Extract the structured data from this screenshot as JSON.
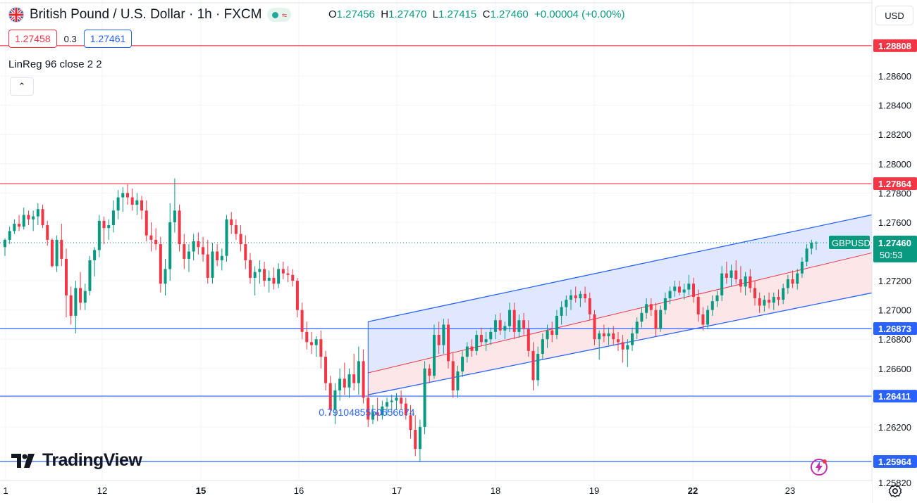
{
  "header": {
    "title": "British Pound / U.S. Dollar · 1h · FXCM",
    "ohlc": {
      "o_label": "O",
      "o": "1.27456",
      "h_label": "H",
      "h": "1.27470",
      "l_label": "L",
      "l": "1.27415",
      "c_label": "C",
      "c": "1.27460",
      "change": "+0.00004 (+0.00%)"
    },
    "sell_price": "1.27458",
    "spread": "0.3",
    "buy_price": "1.27461",
    "indicator": "LinReg 96 close 2 2",
    "collapse_glyph": "⌃",
    "currency": "USD"
  },
  "logo": {
    "text": "TradingView",
    "icon": "tradingview-logo-icon"
  },
  "icons": {
    "settings": "gear-icon",
    "alert": "bolt-icon",
    "flag": "uk-flag-icon"
  },
  "colors": {
    "up": "#089981",
    "down": "#f23645",
    "resistance": "#f23645",
    "support": "#2962ff",
    "channel_upper_fill": "#dbe4ff",
    "channel_lower_fill": "#fde2e4"
  },
  "chart_data": {
    "type": "candlestick",
    "symbol": "GBPUSD",
    "last_price": "1.27460",
    "countdown": "50:53",
    "ylim": [
      1.2568,
      1.2912
    ],
    "y_ticks": [
      "1.25820",
      "1.26200",
      "1.26400",
      "1.26600",
      "1.26800",
      "1.27000",
      "1.27200",
      "1.27600",
      "1.27800",
      "1.28000",
      "1.28200",
      "1.28400",
      "1.28600"
    ],
    "x_ticks": [
      "1",
      "12",
      "15",
      "16",
      "17",
      "18",
      "19",
      "22",
      "23"
    ],
    "x_ticks_bold": [
      "15",
      "22"
    ],
    "horizontal_levels": [
      {
        "value": "1.28808",
        "color": "#f23645"
      },
      {
        "value": "1.27864",
        "color": "#f23645"
      },
      {
        "value": "1.26873",
        "color": "#2962ff"
      },
      {
        "value": "1.26411",
        "color": "#2962ff"
      },
      {
        "value": "1.25964",
        "color": "#2962ff"
      }
    ],
    "regression_channel": {
      "length": 96,
      "source": "close",
      "upper": [
        1.2692,
        1.2757
      ],
      "middle": [
        1.2657,
        1.273
      ],
      "lower": [
        1.2642,
        1.2704
      ],
      "label": "0.7910485550656674"
    },
    "candles": [
      [
        1.2743,
        1.2749,
        1.2737,
        1.2748
      ],
      [
        1.2748,
        1.2757,
        1.2745,
        1.2754
      ],
      [
        1.2754,
        1.2762,
        1.2752,
        1.2759
      ],
      [
        1.2759,
        1.2765,
        1.2754,
        1.2757
      ],
      [
        1.2757,
        1.277,
        1.2755,
        1.2765
      ],
      [
        1.2765,
        1.2768,
        1.2758,
        1.2762
      ],
      [
        1.2762,
        1.2768,
        1.2754,
        1.2764
      ],
      [
        1.2764,
        1.2773,
        1.2758,
        1.2769
      ],
      [
        1.2769,
        1.2772,
        1.2756,
        1.2758
      ],
      [
        1.2758,
        1.2761,
        1.2744,
        1.2748
      ],
      [
        1.2748,
        1.2749,
        1.2729,
        1.273
      ],
      [
        1.273,
        1.2751,
        1.2726,
        1.2748
      ],
      [
        1.2748,
        1.2759,
        1.273,
        1.2735
      ],
      [
        1.2735,
        1.2742,
        1.2695,
        1.271
      ],
      [
        1.271,
        1.2716,
        1.269,
        1.2696
      ],
      [
        1.2696,
        1.272,
        1.2684,
        1.2715
      ],
      [
        1.2715,
        1.2726,
        1.27,
        1.2705
      ],
      [
        1.2705,
        1.2718,
        1.27,
        1.2713
      ],
      [
        1.2713,
        1.2737,
        1.271,
        1.2734
      ],
      [
        1.2734,
        1.2743,
        1.2723,
        1.2741
      ],
      [
        1.2741,
        1.2765,
        1.2736,
        1.2761
      ],
      [
        1.2761,
        1.2764,
        1.2745,
        1.2756
      ],
      [
        1.2756,
        1.2762,
        1.2748,
        1.2758
      ],
      [
        1.2758,
        1.2775,
        1.2753,
        1.2768
      ],
      [
        1.2768,
        1.2782,
        1.2762,
        1.2777
      ],
      [
        1.2777,
        1.2784,
        1.2767,
        1.278
      ],
      [
        1.278,
        1.2786,
        1.2772,
        1.2777
      ],
      [
        1.2777,
        1.2783,
        1.2768,
        1.2772
      ],
      [
        1.2772,
        1.278,
        1.2765,
        1.2775
      ],
      [
        1.2775,
        1.2778,
        1.2762,
        1.2768
      ],
      [
        1.2768,
        1.2775,
        1.2747,
        1.2751
      ],
      [
        1.2751,
        1.276,
        1.274,
        1.2748
      ],
      [
        1.2748,
        1.2756,
        1.2741,
        1.2745
      ],
      [
        1.2745,
        1.275,
        1.2712,
        1.2718
      ],
      [
        1.2718,
        1.2735,
        1.271,
        1.2728
      ],
      [
        1.2728,
        1.2773,
        1.272,
        1.276
      ],
      [
        1.276,
        1.279,
        1.2753,
        1.2768
      ],
      [
        1.2768,
        1.2772,
        1.274,
        1.2745
      ],
      [
        1.2745,
        1.2752,
        1.2728,
        1.2735
      ],
      [
        1.2735,
        1.2745,
        1.2726,
        1.274
      ],
      [
        1.274,
        1.2752,
        1.2734,
        1.2747
      ],
      [
        1.2747,
        1.2753,
        1.2738,
        1.2743
      ],
      [
        1.2743,
        1.275,
        1.2733,
        1.2738
      ],
      [
        1.2738,
        1.2748,
        1.2718,
        1.2722
      ],
      [
        1.2722,
        1.2746,
        1.2718,
        1.274
      ],
      [
        1.274,
        1.2745,
        1.273,
        1.2734
      ],
      [
        1.2734,
        1.2742,
        1.2727,
        1.2737
      ],
      [
        1.2737,
        1.2765,
        1.2733,
        1.2762
      ],
      [
        1.2762,
        1.2767,
        1.2752,
        1.2758
      ],
      [
        1.2758,
        1.2762,
        1.2748,
        1.2752
      ],
      [
        1.2752,
        1.2758,
        1.274,
        1.2745
      ],
      [
        1.2745,
        1.2751,
        1.2728,
        1.2734
      ],
      [
        1.2734,
        1.2739,
        1.2718,
        1.2722
      ],
      [
        1.2722,
        1.273,
        1.271,
        1.2726
      ],
      [
        1.2726,
        1.2734,
        1.2718,
        1.2728
      ],
      [
        1.2728,
        1.2733,
        1.2716,
        1.272
      ],
      [
        1.272,
        1.2727,
        1.2712,
        1.2722
      ],
      [
        1.2722,
        1.2729,
        1.2714,
        1.2718
      ],
      [
        1.2718,
        1.2732,
        1.2715,
        1.2728
      ],
      [
        1.2728,
        1.2733,
        1.2721,
        1.2725
      ],
      [
        1.2725,
        1.273,
        1.2719,
        1.2724
      ],
      [
        1.2724,
        1.2728,
        1.2716,
        1.272
      ],
      [
        1.272,
        1.2722,
        1.2695,
        1.27
      ],
      [
        1.27,
        1.2705,
        1.268,
        1.2685
      ],
      [
        1.2685,
        1.2692,
        1.2673,
        1.2678
      ],
      [
        1.2678,
        1.2685,
        1.267,
        1.2676
      ],
      [
        1.2676,
        1.2682,
        1.2668,
        1.268
      ],
      [
        1.268,
        1.2686,
        1.266,
        1.2668
      ],
      [
        1.2668,
        1.2672,
        1.2645,
        1.265
      ],
      [
        1.265,
        1.2655,
        1.2628,
        1.2632
      ],
      [
        1.2632,
        1.265,
        1.2622,
        1.2645
      ],
      [
        1.2645,
        1.266,
        1.2638,
        1.2653
      ],
      [
        1.2653,
        1.2664,
        1.2642,
        1.2647
      ],
      [
        1.2647,
        1.266,
        1.264,
        1.2656
      ],
      [
        1.2656,
        1.267,
        1.2645,
        1.265
      ],
      [
        1.265,
        1.2675,
        1.2642,
        1.2665
      ],
      [
        1.2665,
        1.2673,
        1.2636,
        1.264
      ],
      [
        1.264,
        1.2645,
        1.262,
        1.2625
      ],
      [
        1.2625,
        1.2635,
        1.2622,
        1.263
      ],
      [
        1.263,
        1.264,
        1.2624,
        1.2628
      ],
      [
        1.2628,
        1.2638,
        1.2625,
        1.2634
      ],
      [
        1.2634,
        1.264,
        1.2628,
        1.2637
      ],
      [
        1.2637,
        1.2642,
        1.263,
        1.2638
      ],
      [
        1.2638,
        1.2643,
        1.2632,
        1.264
      ],
      [
        1.264,
        1.2645,
        1.2632,
        1.2636
      ],
      [
        1.2636,
        1.264,
        1.2625,
        1.2628
      ],
      [
        1.2628,
        1.2635,
        1.2612,
        1.2618
      ],
      [
        1.2618,
        1.2628,
        1.26,
        1.2605
      ],
      [
        1.2605,
        1.2625,
        1.2596,
        1.262
      ],
      [
        1.262,
        1.2665,
        1.2615,
        1.266
      ],
      [
        1.266,
        1.2663,
        1.265,
        1.2655
      ],
      [
        1.2655,
        1.269,
        1.2653,
        1.2683
      ],
      [
        1.2683,
        1.2692,
        1.267,
        1.2676
      ],
      [
        1.2676,
        1.2694,
        1.267,
        1.269
      ],
      [
        1.269,
        1.2694,
        1.266,
        1.2665
      ],
      [
        1.2665,
        1.2671,
        1.264,
        1.2645
      ],
      [
        1.2645,
        1.2662,
        1.264,
        1.2658
      ],
      [
        1.2658,
        1.2672,
        1.2654,
        1.2668
      ],
      [
        1.2668,
        1.2678,
        1.2664,
        1.2675
      ],
      [
        1.2675,
        1.268,
        1.2668,
        1.2672
      ],
      [
        1.2672,
        1.2686,
        1.2669,
        1.2683
      ],
      [
        1.2683,
        1.2688,
        1.2675,
        1.2678
      ],
      [
        1.2678,
        1.2685,
        1.2672,
        1.268
      ],
      [
        1.268,
        1.2688,
        1.2676,
        1.2685
      ],
      [
        1.2685,
        1.2697,
        1.268,
        1.2693
      ],
      [
        1.2693,
        1.2698,
        1.2683,
        1.2686
      ],
      [
        1.2686,
        1.2692,
        1.268,
        1.2689
      ],
      [
        1.2689,
        1.2705,
        1.2685,
        1.27
      ],
      [
        1.27,
        1.2705,
        1.268,
        1.2685
      ],
      [
        1.2685,
        1.2697,
        1.2681,
        1.2693
      ],
      [
        1.2693,
        1.2698,
        1.2682,
        1.2687
      ],
      [
        1.2687,
        1.2693,
        1.2668,
        1.2672
      ],
      [
        1.2672,
        1.2678,
        1.2645,
        1.2652
      ],
      [
        1.2652,
        1.2675,
        1.2648,
        1.267
      ],
      [
        1.267,
        1.2684,
        1.2666,
        1.268
      ],
      [
        1.268,
        1.269,
        1.2674,
        1.2686
      ],
      [
        1.2686,
        1.2692,
        1.2678,
        1.2683
      ],
      [
        1.2683,
        1.27,
        1.268,
        1.2696
      ],
      [
        1.2696,
        1.2706,
        1.269,
        1.2702
      ],
      [
        1.2702,
        1.271,
        1.2696,
        1.2707
      ],
      [
        1.2707,
        1.2714,
        1.27,
        1.271
      ],
      [
        1.271,
        1.2716,
        1.2705,
        1.2708
      ],
      [
        1.2708,
        1.2713,
        1.2702,
        1.2711
      ],
      [
        1.2711,
        1.2716,
        1.2705,
        1.2708
      ],
      [
        1.2708,
        1.2712,
        1.2693,
        1.2697
      ],
      [
        1.2697,
        1.27,
        1.2676,
        1.268
      ],
      [
        1.268,
        1.2686,
        1.2666,
        1.2684
      ],
      [
        1.2684,
        1.269,
        1.2678,
        1.2682
      ],
      [
        1.2682,
        1.2688,
        1.2676,
        1.2684
      ],
      [
        1.2684,
        1.2689,
        1.2676,
        1.268
      ],
      [
        1.268,
        1.2685,
        1.2672,
        1.2678
      ],
      [
        1.2678,
        1.2683,
        1.2664,
        1.2673
      ],
      [
        1.2673,
        1.268,
        1.2661,
        1.2676
      ],
      [
        1.2676,
        1.2688,
        1.2672,
        1.2684
      ],
      [
        1.2684,
        1.2695,
        1.268,
        1.2692
      ],
      [
        1.2692,
        1.2702,
        1.2688,
        1.2698
      ],
      [
        1.2698,
        1.2708,
        1.2694,
        1.2704
      ],
      [
        1.2704,
        1.2708,
        1.2696,
        1.27
      ],
      [
        1.27,
        1.2705,
        1.2682,
        1.2687
      ],
      [
        1.2687,
        1.2703,
        1.2685,
        1.27
      ],
      [
        1.27,
        1.2712,
        1.2697,
        1.2708
      ],
      [
        1.2708,
        1.2716,
        1.2704,
        1.2713
      ],
      [
        1.2713,
        1.272,
        1.2709,
        1.2716
      ],
      [
        1.2716,
        1.272,
        1.271,
        1.2712
      ],
      [
        1.2712,
        1.2718,
        1.2707,
        1.2714
      ],
      [
        1.2714,
        1.2724,
        1.271,
        1.2718
      ],
      [
        1.2718,
        1.2722,
        1.2705,
        1.2709
      ],
      [
        1.2709,
        1.2714,
        1.2692,
        1.2697
      ],
      [
        1.2697,
        1.2702,
        1.2686,
        1.269
      ],
      [
        1.269,
        1.2703,
        1.2687,
        1.27
      ],
      [
        1.27,
        1.271,
        1.2696,
        1.2706
      ],
      [
        1.2706,
        1.2713,
        1.2702,
        1.271
      ],
      [
        1.271,
        1.273,
        1.2706,
        1.2725
      ],
      [
        1.2725,
        1.2733,
        1.2718,
        1.2722
      ],
      [
        1.2722,
        1.2731,
        1.2716,
        1.2727
      ],
      [
        1.2727,
        1.2734,
        1.2718,
        1.2721
      ],
      [
        1.2721,
        1.273,
        1.2712,
        1.2716
      ],
      [
        1.2716,
        1.2726,
        1.271,
        1.2723
      ],
      [
        1.2723,
        1.2728,
        1.2712,
        1.2715
      ],
      [
        1.2715,
        1.272,
        1.2703,
        1.2708
      ],
      [
        1.2708,
        1.2712,
        1.2698,
        1.2703
      ],
      [
        1.2703,
        1.271,
        1.2699,
        1.2707
      ],
      [
        1.2707,
        1.2712,
        1.2701,
        1.2705
      ],
      [
        1.2705,
        1.2712,
        1.27,
        1.2709
      ],
      [
        1.2709,
        1.2714,
        1.2703,
        1.2707
      ],
      [
        1.2707,
        1.2718,
        1.2704,
        1.2715
      ],
      [
        1.2715,
        1.2724,
        1.2711,
        1.2721
      ],
      [
        1.2721,
        1.2727,
        1.2715,
        1.2718
      ],
      [
        1.2718,
        1.2728,
        1.2714,
        1.2725
      ],
      [
        1.2725,
        1.2736,
        1.2722,
        1.2733
      ],
      [
        1.2733,
        1.2745,
        1.273,
        1.2742
      ],
      [
        1.2742,
        1.2748,
        1.2738,
        1.2746
      ],
      [
        1.2746,
        1.2747,
        1.2741,
        1.2746
      ]
    ]
  }
}
